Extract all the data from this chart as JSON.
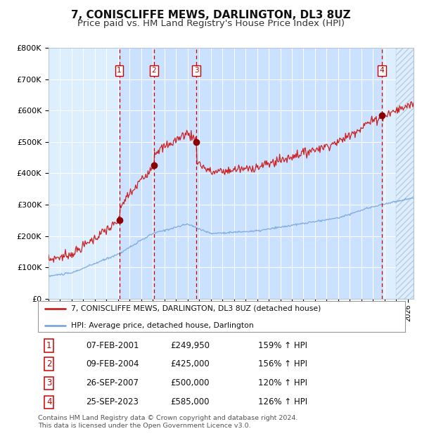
{
  "title": "7, CONISCLIFFE MEWS, DARLINGTON, DL3 8UZ",
  "subtitle": "Price paid vs. HM Land Registry's House Price Index (HPI)",
  "ylim": [
    0,
    800000
  ],
  "yticks": [
    0,
    100000,
    200000,
    300000,
    400000,
    500000,
    600000,
    700000,
    800000
  ],
  "ytick_labels": [
    "£0",
    "£100K",
    "£200K",
    "£300K",
    "£400K",
    "£500K",
    "£600K",
    "£700K",
    "£800K"
  ],
  "title_fontsize": 11,
  "subtitle_fontsize": 9.5,
  "bg_color": "#ddeeff",
  "grid_color": "#ffffff",
  "hpi_line_color": "#7aaadd",
  "price_line_color": "#cc2222",
  "sale_marker_color": "#880000",
  "sale_vline_color": "#cc0000",
  "purchases": [
    {
      "label": "1",
      "date_num": 2001.1,
      "price": 249950
    },
    {
      "label": "2",
      "date_num": 2004.1,
      "price": 425000
    },
    {
      "label": "3",
      "date_num": 2007.75,
      "price": 500000
    },
    {
      "label": "4",
      "date_num": 2023.75,
      "price": 585000
    }
  ],
  "legend_entries": [
    "7, CONISCLIFFE MEWS, DARLINGTON, DL3 8UZ (detached house)",
    "HPI: Average price, detached house, Darlington"
  ],
  "table_rows": [
    [
      "1",
      "07-FEB-2001",
      "£249,950",
      "159% ↑ HPI"
    ],
    [
      "2",
      "09-FEB-2004",
      "£425,000",
      "156% ↑ HPI"
    ],
    [
      "3",
      "26-SEP-2007",
      "£500,000",
      "120% ↑ HPI"
    ],
    [
      "4",
      "25-SEP-2023",
      "£585,000",
      "126% ↑ HPI"
    ]
  ],
  "footer": "Contains HM Land Registry data © Crown copyright and database right 2024.\nThis data is licensed under the Open Government Licence v3.0.",
  "xmin": 1995,
  "xmax": 2026.5,
  "hatch_start": 2025.0
}
